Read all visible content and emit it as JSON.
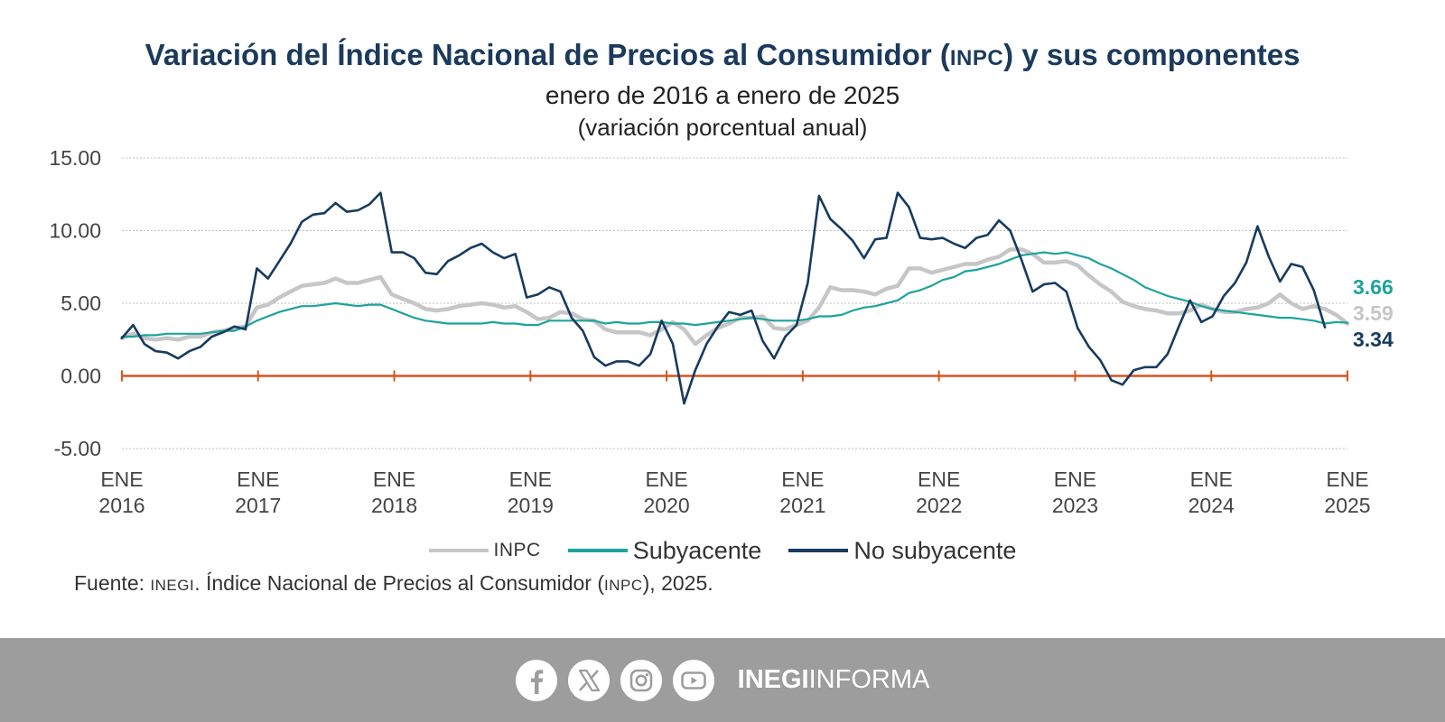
{
  "title": {
    "part1": "Variación del Índice Nacional de Precios al Consumidor (",
    "abbr": "INPC",
    "part2": ") y sus componentes"
  },
  "subtitle": "enero de 2016 a enero de 2025",
  "subtitle2": "(variación porcentual anual)",
  "source": {
    "prefix": "Fuente: ",
    "org": "INEGI",
    "mid": ". Índice Nacional de Precios al Consumidor (",
    "abbr": "INPC",
    "suffix": "), 2025."
  },
  "footer": {
    "icons": [
      "facebook-icon",
      "x-icon",
      "instagram-icon",
      "youtube-icon"
    ],
    "brand_bold": "INEGI",
    "brand_light": "INFORMA"
  },
  "colors": {
    "inpc": "#c6c6c6",
    "subyacente": "#1ea39c",
    "no_subyacente": "#173b5e",
    "zero_axis": "#d9531e",
    "grid": "#bfbfbf",
    "title": "#1b3a5c"
  },
  "chart_data": {
    "type": "line",
    "ylim": [
      -5,
      15
    ],
    "yticks": [
      "15.00",
      "10.00",
      "5.00",
      "0.00",
      "-5.00"
    ],
    "ytick_values": [
      15,
      10,
      5,
      0,
      -5
    ],
    "x_start": "2016-01",
    "x_end": "2025-01",
    "xticks": [
      {
        "top": "ENE",
        "bottom": "2016"
      },
      {
        "top": "ENE",
        "bottom": "2017"
      },
      {
        "top": "ENE",
        "bottom": "2018"
      },
      {
        "top": "ENE",
        "bottom": "2019"
      },
      {
        "top": "ENE",
        "bottom": "2020"
      },
      {
        "top": "ENE",
        "bottom": "2021"
      },
      {
        "top": "ENE",
        "bottom": "2022"
      },
      {
        "top": "ENE",
        "bottom": "2023"
      },
      {
        "top": "ENE",
        "bottom": "2024"
      },
      {
        "top": "ENE",
        "bottom": "2025"
      }
    ],
    "legend_position": "bottom",
    "grid": true,
    "series": [
      {
        "name": "INPC",
        "key": "inpc",
        "end_label": "3.59",
        "values": [
          2.6,
          2.9,
          2.6,
          2.5,
          2.6,
          2.5,
          2.7,
          2.7,
          3.0,
          3.1,
          3.3,
          3.4,
          4.7,
          4.9,
          5.4,
          5.8,
          6.2,
          6.3,
          6.4,
          6.7,
          6.4,
          6.4,
          6.6,
          6.8,
          5.6,
          5.3,
          5.0,
          4.6,
          4.5,
          4.6,
          4.8,
          4.9,
          5.0,
          4.9,
          4.7,
          4.8,
          4.4,
          3.9,
          4.0,
          4.4,
          4.3,
          3.9,
          3.8,
          3.2,
          3.0,
          3.0,
          3.0,
          2.8,
          3.2,
          3.7,
          3.2,
          2.2,
          2.8,
          3.3,
          3.6,
          4.0,
          4.0,
          4.1,
          3.3,
          3.2,
          3.5,
          3.8,
          4.7,
          6.1,
          5.9,
          5.9,
          5.8,
          5.6,
          6.0,
          6.2,
          7.4,
          7.4,
          7.1,
          7.3,
          7.5,
          7.7,
          7.7,
          8.0,
          8.2,
          8.7,
          8.7,
          8.4,
          7.8,
          7.8,
          7.9,
          7.6,
          6.9,
          6.3,
          5.8,
          5.1,
          4.8,
          4.6,
          4.5,
          4.3,
          4.3,
          4.5,
          4.9,
          4.6,
          4.4,
          4.4,
          4.6,
          4.7,
          5.0,
          5.6,
          5.0,
          4.6,
          4.8,
          4.6,
          4.2,
          3.59
        ]
      },
      {
        "name": "Subyacente",
        "key": "subyacente",
        "end_label": "3.66",
        "values": [
          2.7,
          2.7,
          2.8,
          2.8,
          2.9,
          2.9,
          2.9,
          2.9,
          3.0,
          3.1,
          3.1,
          3.4,
          3.8,
          4.1,
          4.4,
          4.6,
          4.8,
          4.8,
          4.9,
          5.0,
          4.9,
          4.8,
          4.9,
          4.9,
          4.6,
          4.3,
          4.0,
          3.8,
          3.7,
          3.6,
          3.6,
          3.6,
          3.6,
          3.7,
          3.6,
          3.6,
          3.5,
          3.5,
          3.8,
          3.8,
          3.8,
          3.8,
          3.8,
          3.6,
          3.7,
          3.6,
          3.6,
          3.7,
          3.7,
          3.6,
          3.6,
          3.5,
          3.6,
          3.7,
          3.8,
          3.9,
          4.0,
          3.9,
          3.8,
          3.8,
          3.8,
          3.9,
          4.1,
          4.1,
          4.2,
          4.5,
          4.7,
          4.8,
          5.0,
          5.2,
          5.7,
          5.9,
          6.2,
          6.6,
          6.8,
          7.2,
          7.3,
          7.5,
          7.7,
          8.0,
          8.3,
          8.4,
          8.5,
          8.4,
          8.5,
          8.3,
          8.1,
          7.7,
          7.4,
          7.0,
          6.6,
          6.1,
          5.8,
          5.5,
          5.3,
          5.1,
          4.8,
          4.6,
          4.5,
          4.4,
          4.3,
          4.2,
          4.1,
          4.0,
          4.0,
          3.9,
          3.8,
          3.6,
          3.7,
          3.66
        ]
      },
      {
        "name": "No subyacente",
        "key": "no_subyacente",
        "end_label": "3.34",
        "values": [
          2.6,
          3.5,
          2.2,
          1.7,
          1.6,
          1.2,
          1.7,
          2.0,
          2.7,
          3.0,
          3.4,
          3.2,
          7.4,
          6.7,
          7.9,
          9.1,
          10.6,
          11.1,
          11.2,
          11.9,
          11.3,
          11.4,
          11.8,
          12.6,
          8.5,
          8.5,
          8.1,
          7.1,
          7.0,
          7.9,
          8.3,
          8.8,
          9.1,
          8.5,
          8.1,
          8.4,
          5.4,
          5.6,
          6.1,
          5.8,
          4.0,
          3.1,
          1.3,
          0.7,
          1.0,
          1.0,
          0.7,
          1.5,
          3.8,
          2.2,
          -1.9,
          0.4,
          2.2,
          3.4,
          4.4,
          4.2,
          4.5,
          2.4,
          1.2,
          2.7,
          3.5,
          6.4,
          12.4,
          10.8,
          10.1,
          9.3,
          8.1,
          9.4,
          9.5,
          12.6,
          11.6,
          9.5,
          9.4,
          9.5,
          9.1,
          8.8,
          9.5,
          9.7,
          10.7,
          10.0,
          8.0,
          5.8,
          6.3,
          6.4,
          5.8,
          3.3,
          2.0,
          1.1,
          -0.3,
          -0.6,
          0.4,
          0.6,
          0.6,
          1.5,
          3.4,
          5.2,
          3.7,
          4.1,
          5.5,
          6.4,
          7.8,
          10.3,
          8.2,
          6.5,
          7.7,
          7.5,
          5.9,
          3.34
        ]
      }
    ]
  }
}
